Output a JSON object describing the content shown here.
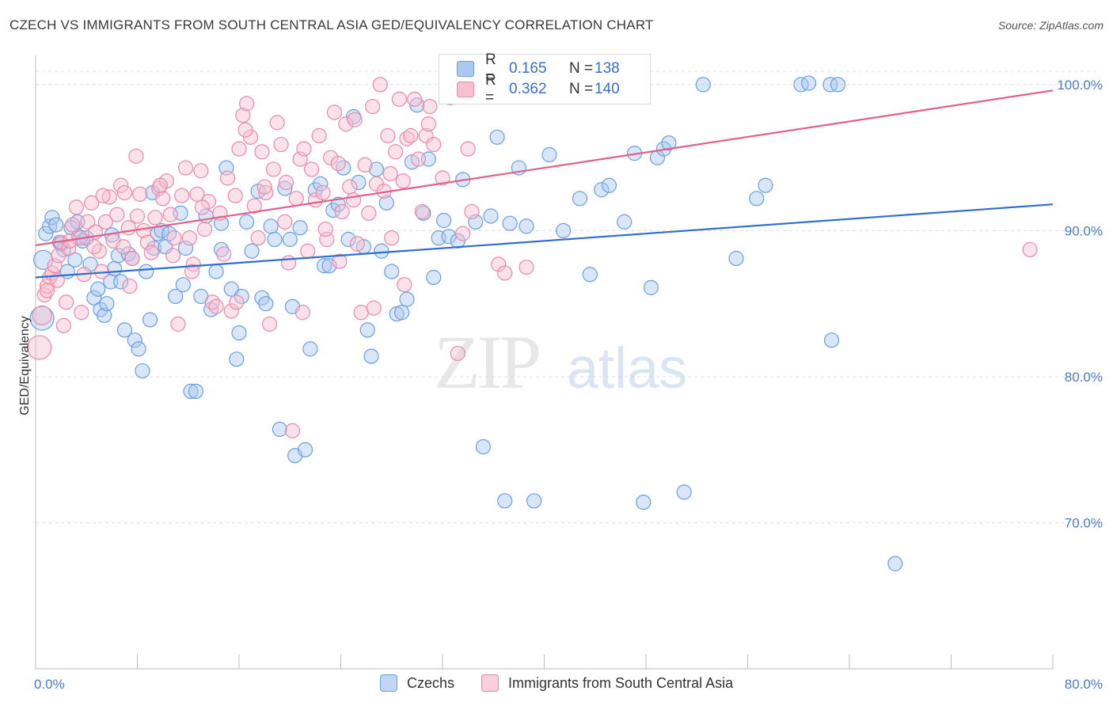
{
  "title": "CZECH VS IMMIGRANTS FROM SOUTH CENTRAL ASIA GED/EQUIVALENCY CORRELATION CHART",
  "source": "Source: ZipAtlas.com",
  "watermark": {
    "zip": "ZIP",
    "atlas": "atlas"
  },
  "legend": {
    "r_label": "R =",
    "n_label": "N =",
    "rows": [
      {
        "r": "0.165",
        "n": "138",
        "fill": "#aac8f0",
        "stroke": "#6a9fe0"
      },
      {
        "r": "0.362",
        "n": "140",
        "fill": "#f7bfd0",
        "stroke": "#e98aa8"
      }
    ]
  },
  "bottom_legend": [
    {
      "label": "Czechs",
      "fill": "#c0d6f5",
      "stroke": "#6a9fe0"
    },
    {
      "label": "Immigrants from South Central Asia",
      "fill": "#f8cfdb",
      "stroke": "#e98aa8"
    }
  ],
  "chart_data": {
    "type": "scatter",
    "xlabel": "",
    "ylabel": "GED/Equivalency",
    "xlim": [
      0,
      80
    ],
    "ylim": [
      60,
      102
    ],
    "x_tick_labels": [
      "0.0%",
      "80.0%"
    ],
    "y_ticks": [
      70,
      80,
      90,
      100
    ],
    "y_tick_labels": [
      "70.0%",
      "80.0%",
      "90.0%",
      "100.0%"
    ],
    "grid": true,
    "series": [
      {
        "name": "Czechs",
        "color": "#6a9fe0",
        "fill": "#aac8f0",
        "trend": {
          "x": [
            0,
            80
          ],
          "y": [
            86.8,
            91.8
          ],
          "color": "#2f6fce"
        },
        "points": [
          [
            0.5,
            84.0
          ],
          [
            0.6,
            88.0
          ],
          [
            0.8,
            89.8
          ],
          [
            1.1,
            90.3
          ],
          [
            1.3,
            90.9
          ],
          [
            1.6,
            90.4
          ],
          [
            1.9,
            89.2
          ],
          [
            2.2,
            88.7
          ],
          [
            2.5,
            87.2
          ],
          [
            2.8,
            90.2
          ],
          [
            3.1,
            88.0
          ],
          [
            3.4,
            89.6
          ],
          [
            3.7,
            89.3
          ],
          [
            4.0,
            89.5
          ],
          [
            4.3,
            87.7
          ],
          [
            4.6,
            85.4
          ],
          [
            4.9,
            86.0
          ],
          [
            5.1,
            84.6
          ],
          [
            5.4,
            84.2
          ],
          [
            5.6,
            85.0
          ],
          [
            5.9,
            86.5
          ],
          [
            6.2,
            87.4
          ],
          [
            6.5,
            88.3
          ],
          [
            6.7,
            86.5
          ],
          [
            7.0,
            83.2
          ],
          [
            7.3,
            88.4
          ],
          [
            7.6,
            88.1
          ],
          [
            7.8,
            82.5
          ],
          [
            8.1,
            81.9
          ],
          [
            8.4,
            80.4
          ],
          [
            8.7,
            87.2
          ],
          [
            9.0,
            83.9
          ],
          [
            9.3,
            88.8
          ],
          [
            9.6,
            89.8
          ],
          [
            9.9,
            90.0
          ],
          [
            10.2,
            88.9
          ],
          [
            10.5,
            89.8
          ],
          [
            11.0,
            85.5
          ],
          [
            11.4,
            91.2
          ],
          [
            11.8,
            88.8
          ],
          [
            12.2,
            79.0
          ],
          [
            12.6,
            79.0
          ],
          [
            13.0,
            85.5
          ],
          [
            13.4,
            91.0
          ],
          [
            13.8,
            84.6
          ],
          [
            14.2,
            87.2
          ],
          [
            14.6,
            88.7
          ],
          [
            15.0,
            94.3
          ],
          [
            15.4,
            86.0
          ],
          [
            15.8,
            81.2
          ],
          [
            16.0,
            83.0
          ],
          [
            16.2,
            85.5
          ],
          [
            16.6,
            90.6
          ],
          [
            17.0,
            88.6
          ],
          [
            17.5,
            92.7
          ],
          [
            17.8,
            85.4
          ],
          [
            18.1,
            85.0
          ],
          [
            18.5,
            90.3
          ],
          [
            18.8,
            89.4
          ],
          [
            19.2,
            76.4
          ],
          [
            19.6,
            92.9
          ],
          [
            20.0,
            89.4
          ],
          [
            20.4,
            74.6
          ],
          [
            20.8,
            90.2
          ],
          [
            21.2,
            75.0
          ],
          [
            21.6,
            81.9
          ],
          [
            22.0,
            92.8
          ],
          [
            22.4,
            93.2
          ],
          [
            22.7,
            87.6
          ],
          [
            23.1,
            87.6
          ],
          [
            23.4,
            91.4
          ],
          [
            23.8,
            91.8
          ],
          [
            24.2,
            94.3
          ],
          [
            24.6,
            89.4
          ],
          [
            25.0,
            97.8
          ],
          [
            25.4,
            93.3
          ],
          [
            25.8,
            88.9
          ],
          [
            26.1,
            83.2
          ],
          [
            26.4,
            81.4
          ],
          [
            26.8,
            94.2
          ],
          [
            27.2,
            88.6
          ],
          [
            27.6,
            91.9
          ],
          [
            28.0,
            87.2
          ],
          [
            28.4,
            84.3
          ],
          [
            28.8,
            84.4
          ],
          [
            29.2,
            85.3
          ],
          [
            29.6,
            94.7
          ],
          [
            30.0,
            98.6
          ],
          [
            30.5,
            91.2
          ],
          [
            30.9,
            94.9
          ],
          [
            31.3,
            86.8
          ],
          [
            31.7,
            89.5
          ],
          [
            32.1,
            90.7
          ],
          [
            32.5,
            89.6
          ],
          [
            33.2,
            89.3
          ],
          [
            33.6,
            93.5
          ],
          [
            34.6,
            90.6
          ],
          [
            35.2,
            75.2
          ],
          [
            35.8,
            91.0
          ],
          [
            36.3,
            96.4
          ],
          [
            36.9,
            71.5
          ],
          [
            37.3,
            90.5
          ],
          [
            38.0,
            94.3
          ],
          [
            38.6,
            90.3
          ],
          [
            39.2,
            71.5
          ],
          [
            40.4,
            95.2
          ],
          [
            41.5,
            90.0
          ],
          [
            42.8,
            92.2
          ],
          [
            43.6,
            87.0
          ],
          [
            44.5,
            92.8
          ],
          [
            45.1,
            93.1
          ],
          [
            46.3,
            90.6
          ],
          [
            47.1,
            95.3
          ],
          [
            47.8,
            71.4
          ],
          [
            48.4,
            86.1
          ],
          [
            48.9,
            95.0
          ],
          [
            49.4,
            95.6
          ],
          [
            49.8,
            96.0
          ],
          [
            51.0,
            72.1
          ],
          [
            52.5,
            100.0
          ],
          [
            55.1,
            88.1
          ],
          [
            56.7,
            92.2
          ],
          [
            57.4,
            93.1
          ],
          [
            60.2,
            100.0
          ],
          [
            60.8,
            100.1
          ],
          [
            62.5,
            100.0
          ],
          [
            62.6,
            82.5
          ],
          [
            63.1,
            100.0
          ],
          [
            67.6,
            67.2
          ],
          [
            20.2,
            84.8
          ],
          [
            14.6,
            90.5
          ],
          [
            11.6,
            86.3
          ],
          [
            9.2,
            92.6
          ],
          [
            6.0,
            89.7
          ],
          [
            3.3,
            90.6
          ],
          [
            2.0,
            89.1
          ]
        ]
      },
      {
        "name": "Immigrants from South Central Asia",
        "color": "#e98aa8",
        "fill": "#f7bfd0",
        "trend": {
          "x": [
            0,
            80
          ],
          "y": [
            89.0,
            99.6
          ],
          "color": "#e0608a"
        },
        "points": [
          [
            0.3,
            82.0
          ],
          [
            0.5,
            84.2
          ],
          [
            0.7,
            85.6
          ],
          [
            0.9,
            86.2
          ],
          [
            1.1,
            86.8
          ],
          [
            1.3,
            87.1
          ],
          [
            1.5,
            87.6
          ],
          [
            1.8,
            88.3
          ],
          [
            2.0,
            89.2
          ],
          [
            2.2,
            83.5
          ],
          [
            2.4,
            85.1
          ],
          [
            2.6,
            88.8
          ],
          [
            2.9,
            90.4
          ],
          [
            3.2,
            91.6
          ],
          [
            3.5,
            89.5
          ],
          [
            3.8,
            87.0
          ],
          [
            4.1,
            90.6
          ],
          [
            4.4,
            91.9
          ],
          [
            4.7,
            89.9
          ],
          [
            5.0,
            88.6
          ],
          [
            5.2,
            87.2
          ],
          [
            5.5,
            90.6
          ],
          [
            5.8,
            92.3
          ],
          [
            6.1,
            89.3
          ],
          [
            6.4,
            91.1
          ],
          [
            6.7,
            93.1
          ],
          [
            7.0,
            92.6
          ],
          [
            7.3,
            90.2
          ],
          [
            7.6,
            88.1
          ],
          [
            7.9,
            95.1
          ],
          [
            8.2,
            92.5
          ],
          [
            8.5,
            90.0
          ],
          [
            8.8,
            89.2
          ],
          [
            9.1,
            88.5
          ],
          [
            9.4,
            90.9
          ],
          [
            9.7,
            92.9
          ],
          [
            10.0,
            92.2
          ],
          [
            10.3,
            93.4
          ],
          [
            10.6,
            91.1
          ],
          [
            10.9,
            89.5
          ],
          [
            11.2,
            83.6
          ],
          [
            11.5,
            92.4
          ],
          [
            11.8,
            94.3
          ],
          [
            12.1,
            89.5
          ],
          [
            12.4,
            87.7
          ],
          [
            12.7,
            92.5
          ],
          [
            13.0,
            94.1
          ],
          [
            13.3,
            90.1
          ],
          [
            13.6,
            92.0
          ],
          [
            13.9,
            85.1
          ],
          [
            14.2,
            84.8
          ],
          [
            14.5,
            91.2
          ],
          [
            14.8,
            88.4
          ],
          [
            15.1,
            93.6
          ],
          [
            15.4,
            84.5
          ],
          [
            15.7,
            92.4
          ],
          [
            16.0,
            95.6
          ],
          [
            16.3,
            97.9
          ],
          [
            16.6,
            98.7
          ],
          [
            16.9,
            96.4
          ],
          [
            17.2,
            91.7
          ],
          [
            17.5,
            89.5
          ],
          [
            17.8,
            95.4
          ],
          [
            18.1,
            92.6
          ],
          [
            18.4,
            83.6
          ],
          [
            18.7,
            94.2
          ],
          [
            19.0,
            97.4
          ],
          [
            19.3,
            95.9
          ],
          [
            19.6,
            90.6
          ],
          [
            19.9,
            87.8
          ],
          [
            20.2,
            76.3
          ],
          [
            20.5,
            92.2
          ],
          [
            20.8,
            94.9
          ],
          [
            21.1,
            95.6
          ],
          [
            21.4,
            88.6
          ],
          [
            21.7,
            94.2
          ],
          [
            22.0,
            92.1
          ],
          [
            22.3,
            96.5
          ],
          [
            22.6,
            92.6
          ],
          [
            22.9,
            89.4
          ],
          [
            23.2,
            95.0
          ],
          [
            23.5,
            98.1
          ],
          [
            23.8,
            94.6
          ],
          [
            24.1,
            91.3
          ],
          [
            24.4,
            97.3
          ],
          [
            24.7,
            93.0
          ],
          [
            25.0,
            92.1
          ],
          [
            25.3,
            89.1
          ],
          [
            25.6,
            84.4
          ],
          [
            25.9,
            94.5
          ],
          [
            26.2,
            91.2
          ],
          [
            26.5,
            98.5
          ],
          [
            26.8,
            93.2
          ],
          [
            27.1,
            100.0
          ],
          [
            27.4,
            92.7
          ],
          [
            27.7,
            96.5
          ],
          [
            28.0,
            89.5
          ],
          [
            28.3,
            95.4
          ],
          [
            28.6,
            99.0
          ],
          [
            28.9,
            93.4
          ],
          [
            29.2,
            96.3
          ],
          [
            29.5,
            96.5
          ],
          [
            29.8,
            99.0
          ],
          [
            30.1,
            94.9
          ],
          [
            30.4,
            91.3
          ],
          [
            30.7,
            96.5
          ],
          [
            31.0,
            98.5
          ],
          [
            31.3,
            95.9
          ],
          [
            32.0,
            93.6
          ],
          [
            32.6,
            99.1
          ],
          [
            33.2,
            81.6
          ],
          [
            33.6,
            89.8
          ],
          [
            34.0,
            95.6
          ],
          [
            34.3,
            91.3
          ],
          [
            36.4,
            87.7
          ],
          [
            36.9,
            87.1
          ],
          [
            38.6,
            87.5
          ],
          [
            78.2,
            88.7
          ],
          [
            0.9,
            85.9
          ],
          [
            1.7,
            86.6
          ],
          [
            2.7,
            89.3
          ],
          [
            4.6,
            88.9
          ],
          [
            6.9,
            88.9
          ],
          [
            9.8,
            93.1
          ],
          [
            12.3,
            87.2
          ],
          [
            15.8,
            85.1
          ],
          [
            18.0,
            93.0
          ],
          [
            21.0,
            84.4
          ],
          [
            23.9,
            87.9
          ],
          [
            26.6,
            84.7
          ],
          [
            29.0,
            86.3
          ],
          [
            5.3,
            92.4
          ],
          [
            8.0,
            91.0
          ],
          [
            10.8,
            88.3
          ],
          [
            13.1,
            91.6
          ],
          [
            16.5,
            96.9
          ],
          [
            19.7,
            93.3
          ],
          [
            22.8,
            90.1
          ],
          [
            25.1,
            97.6
          ],
          [
            27.9,
            93.9
          ],
          [
            30.9,
            97.3
          ],
          [
            3.6,
            84.4
          ],
          [
            7.4,
            86.2
          ]
        ]
      }
    ]
  }
}
